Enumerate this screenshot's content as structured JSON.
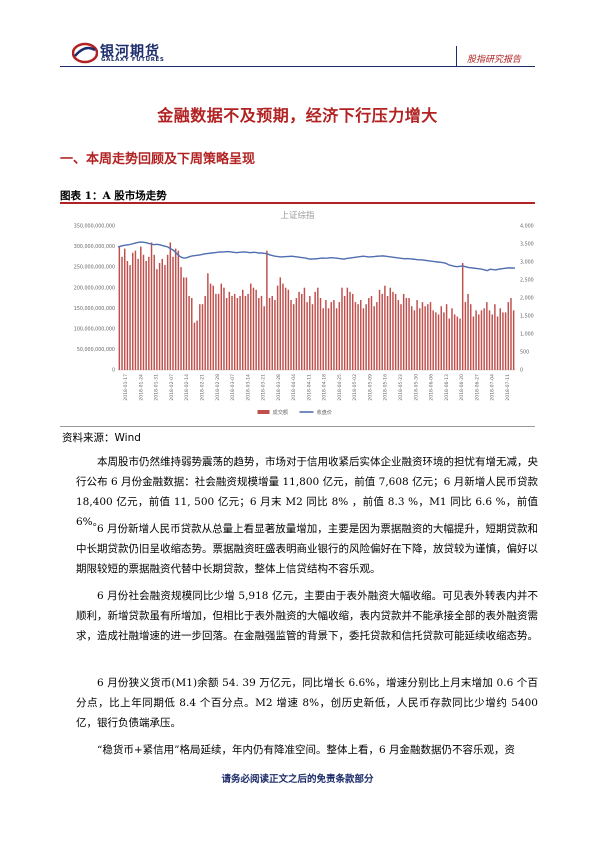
{
  "header": {
    "logo_cn": "银河期货",
    "logo_en": "GALAXY FUTURES",
    "report_type": "股指研究报告"
  },
  "title": "金融数据不及预期，经济下行压力增大",
  "section_heading": "一、本周走势回顾及下周策略呈现",
  "figure_label": "图表 1：A 股市场走势",
  "source": "资料来源：Wind",
  "paragraphs": [
    "本周股市仍然维持弱势震荡的趋势，市场对于信用收紧后实体企业融资环境的担忧有增无减，央行公布 6 月份金融数据：社会融资规模增量 11,800 亿元，前值 7,608 亿元；6 月新增人民币贷款 18,400 亿元，前值 11, 500 亿元；6 月末 M2 同比 8% ，前值 8.3 %，M1 同比 6.6 %，前值 6%。",
    "6 月份新增人民币贷款从总量上看显著放量增加，主要是因为票据融资的大幅提升，短期贷款和中长期贷款仍旧呈收缩态势。票据融资旺盛表明商业银行的风险偏好在下降，放贷较为谨慎，偏好以期限较短的票据融资代替中长期贷款，整体上信贷结构不容乐观。",
    "6 月份社会融资规模同比少增 5,918 亿元，主要由于表外融资大幅收缩。可见表外转表内并不顺利，新增贷款虽有所增加，但相比于表外融资的大幅收缩，表内贷款并不能承接全部的表外融资需求，造成社融增速的进一步回落。在金融强监管的背景下，委托贷款和信托贷款可能延续收缩态势。",
    "6 月份狭义货币(M1)余额 54. 39 万亿元，同比增长 6.6%，增速分别比上月末增加 0.6 个百分点，比上年同期低 8.4 个百分点。M2 增速 8%，创历史新低，人民币存款同比少增约 5400 亿，银行负债端承压。",
    "“稳货币+紧信用”格局延续，年内仍有降准空间。整体上看，6 月金融数据仍不容乐观，资"
  ],
  "footer_note": "请务必阅读正文之后的免责条款部分",
  "colors": {
    "brand_red": "#b22222",
    "brand_navy": "#1d2d6b",
    "bar": "#c0504d",
    "line": "#4f6fb0"
  },
  "chart_data": {
    "type": "bar+line",
    "title": "上证综指",
    "left_axis": {
      "ticks": [
        "0",
        "50,000,000,000",
        "100,000,000,000",
        "150,000,000,000",
        "200,000,000,000",
        "250,000,000,000",
        "300,000,000,000",
        "350,000,000,000"
      ],
      "ylim": [
        0,
        350000000000
      ]
    },
    "right_axis": {
      "ticks": [
        "0",
        "500",
        "1,000",
        "1,500",
        "2,000",
        "2,500",
        "3,000",
        "3,500",
        "4,000"
      ],
      "ylim": [
        0,
        4000
      ]
    },
    "x_ticks": [
      "2018-01-17",
      "2018-01-24",
      "2018-01-31",
      "2018-02-07",
      "2018-02-14",
      "2018-02-21",
      "2018-02-28",
      "2018-03-07",
      "2018-03-14",
      "2018-03-21",
      "2018-03-28",
      "2018-04-04",
      "2018-04-11",
      "2018-04-18",
      "2018-04-25",
      "2018-05-02",
      "2018-05-09",
      "2018-05-16",
      "2018-05-23",
      "2018-05-30",
      "2018-06-06",
      "2018-06-13",
      "2018-06-20",
      "2018-06-27",
      "2018-07-04",
      "2018-07-11"
    ],
    "legend": [
      "成交额",
      "收盘价"
    ],
    "legend_position": "bottom",
    "grid": false,
    "series": [
      {
        "name": "成交额",
        "kind": "bar",
        "values": [
          300000000000,
          275000000000,
          295000000000,
          265000000000,
          255000000000,
          285000000000,
          290000000000,
          270000000000,
          300000000000,
          280000000000,
          265000000000,
          275000000000,
          310000000000,
          280000000000,
          245000000000,
          260000000000,
          270000000000,
          255000000000,
          280000000000,
          310000000000,
          275000000000,
          295000000000,
          290000000000,
          250000000000,
          225000000000,
          225000000000,
          180000000000,
          175000000000,
          115000000000,
          120000000000,
          160000000000,
          160000000000,
          180000000000,
          235000000000,
          210000000000,
          205000000000,
          185000000000,
          185000000000,
          210000000000,
          200000000000,
          175000000000,
          190000000000,
          180000000000,
          185000000000,
          175000000000,
          180000000000,
          195000000000,
          180000000000,
          185000000000,
          210000000000,
          200000000000,
          195000000000,
          175000000000,
          180000000000,
          155000000000,
          290000000000,
          175000000000,
          180000000000,
          170000000000,
          205000000000,
          225000000000,
          210000000000,
          200000000000,
          195000000000,
          170000000000,
          160000000000,
          175000000000,
          190000000000,
          185000000000,
          200000000000,
          165000000000,
          180000000000,
          160000000000,
          190000000000,
          200000000000,
          175000000000,
          150000000000,
          170000000000,
          150000000000,
          165000000000,
          170000000000,
          150000000000,
          165000000000,
          200000000000,
          180000000000,
          200000000000,
          190000000000,
          185000000000,
          165000000000,
          160000000000,
          170000000000,
          150000000000,
          160000000000,
          175000000000,
          180000000000,
          155000000000,
          165000000000,
          195000000000,
          185000000000,
          205000000000,
          180000000000,
          200000000000,
          190000000000,
          185000000000,
          170000000000,
          160000000000,
          185000000000,
          175000000000,
          175000000000,
          155000000000,
          145000000000,
          170000000000,
          150000000000,
          165000000000,
          155000000000,
          160000000000,
          165000000000,
          145000000000,
          140000000000,
          135000000000,
          155000000000,
          140000000000,
          160000000000,
          125000000000,
          150000000000,
          135000000000,
          130000000000,
          125000000000,
          260000000000,
          165000000000,
          185000000000,
          160000000000,
          130000000000,
          145000000000,
          135000000000,
          145000000000,
          150000000000,
          165000000000,
          145000000000,
          135000000000,
          160000000000,
          130000000000,
          150000000000,
          140000000000,
          140000000000,
          165000000000,
          175000000000,
          145000000000
        ]
      },
      {
        "name": "收盘价",
        "kind": "line",
        "values": [
          3420,
          3440,
          3460,
          3470,
          3480,
          3500,
          3520,
          3540,
          3555,
          3550,
          3540,
          3520,
          3500,
          3480,
          3490,
          3480,
          3460,
          3440,
          3420,
          3370,
          3330,
          3260,
          3180,
          3130,
          3110,
          3120,
          3150,
          3170,
          3180,
          3190,
          3200,
          3220,
          3230,
          3240,
          3250,
          3260,
          3270,
          3280,
          3275,
          3285,
          3290,
          3280,
          3270,
          3260,
          3270,
          3275,
          3280,
          3270,
          3260,
          3270,
          3265,
          3250,
          3250,
          3240,
          3230,
          3200,
          3180,
          3160,
          3150,
          3140,
          3145,
          3150,
          3155,
          3160,
          3150,
          3140,
          3130,
          3120,
          3110,
          3090,
          3080,
          3085,
          3090,
          3100,
          3110,
          3105,
          3110,
          3120,
          3115,
          3110,
          3100,
          3090,
          3080,
          3100,
          3110,
          3120,
          3130,
          3140,
          3150,
          3160,
          3150,
          3140,
          3145,
          3150,
          3160,
          3165,
          3170,
          3160,
          3150,
          3140,
          3130,
          3120,
          3110,
          3100,
          3090,
          3095,
          3090,
          3080,
          3070,
          3060,
          3060,
          3050,
          3040,
          3030,
          3020,
          3010,
          3000,
          2990,
          2980,
          2960,
          2920,
          2900,
          2880,
          2870,
          2880,
          2890,
          2870,
          2850,
          2840,
          2830,
          2820,
          2810,
          2800,
          2780,
          2760,
          2800,
          2790,
          2780,
          2800,
          2810,
          2820,
          2830,
          2840,
          2830,
          2835
        ]
      }
    ]
  }
}
